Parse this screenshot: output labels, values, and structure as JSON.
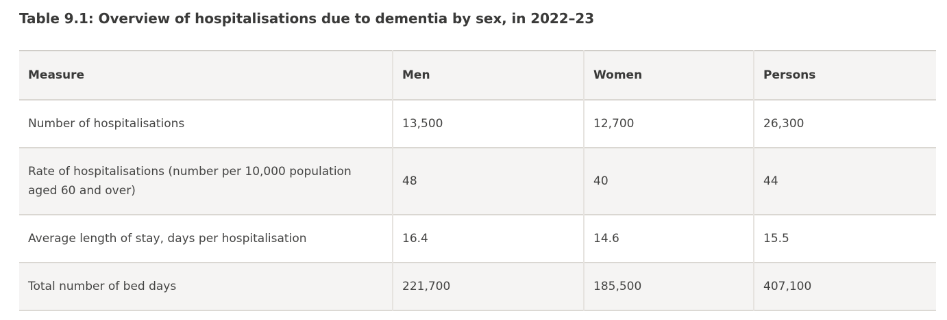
{
  "title": "Table 9.1: Overview of hospitalisations due to dementia by sex, in 2022–23",
  "table": {
    "header": [
      "Measure",
      "Men",
      "Women",
      "Persons"
    ],
    "rows": [
      [
        "Number of hospitalisations",
        "13,500",
        "12,700",
        "26,300"
      ],
      [
        "Rate of hospitalisations (number per 10,000 population\naged 60 and over)",
        "48",
        "40",
        "44"
      ],
      [
        "Average length of stay, days per hospitalisation",
        "16.4",
        "14.6",
        "15.5"
      ],
      [
        "Total number of bed days",
        "221,700",
        "185,500",
        "407,100"
      ]
    ]
  },
  "colors": {
    "row_shade": "#f5f4f3",
    "border_horizontal": "#dad7d2",
    "border_vertical": "#e6e3df",
    "text": "#444443",
    "heading_text": "#3a3a39"
  },
  "chart_data": {
    "type": "table",
    "title": "Table 9.1: Overview of hospitalisations due to dementia by sex, in 2022–23",
    "columns": [
      "Measure",
      "Men",
      "Women",
      "Persons"
    ],
    "series": [
      {
        "name": "Number of hospitalisations",
        "values": [
          13500,
          12700,
          26300
        ]
      },
      {
        "name": "Rate of hospitalisations (number per 10,000 population aged 60 and over)",
        "values": [
          48,
          40,
          44
        ]
      },
      {
        "name": "Average length of stay, days per hospitalisation",
        "values": [
          16.4,
          14.6,
          15.5
        ]
      },
      {
        "name": "Total number of bed days",
        "values": [
          221700,
          185500,
          407100
        ]
      }
    ]
  }
}
